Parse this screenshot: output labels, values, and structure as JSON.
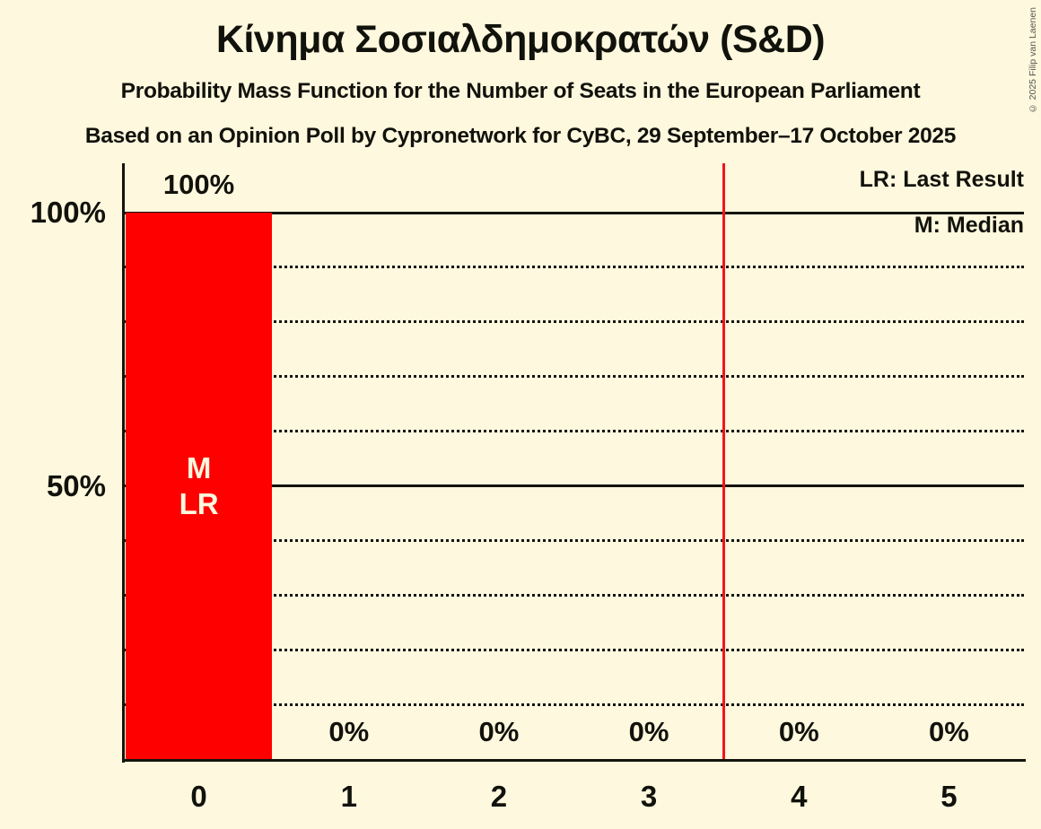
{
  "copyright": "© 2025 Filip van Laenen",
  "chart_data": {
    "type": "bar",
    "title": "Κίνημα Σοσιαλδημοκρατών (S&D)",
    "subtitle": "Probability Mass Function for the Number of Seats in the European Parliament",
    "note": "Based on an Opinion Poll by Cypronetwork for CyBC, 29 September–17 October 2025",
    "xlabel": "",
    "ylabel": "",
    "categories": [
      "0",
      "1",
      "2",
      "3",
      "4",
      "5"
    ],
    "values": [
      100,
      0,
      0,
      0,
      0,
      0
    ],
    "value_labels": [
      "100%",
      "0%",
      "0%",
      "0%",
      "0%",
      "0%"
    ],
    "bar_annotations": [
      [
        "M",
        "LR"
      ],
      [],
      [],
      [],
      [],
      []
    ],
    "y_axis": {
      "range": [
        0,
        100
      ],
      "ticks": [
        {
          "label": "100%",
          "value": 100
        },
        {
          "label": "50%",
          "value": 50
        }
      ]
    },
    "gridlines": {
      "dotted_percents": [
        10,
        20,
        30,
        40,
        60,
        70,
        80,
        90
      ],
      "solid_percents": [
        50,
        100
      ],
      "grid_on": true
    },
    "legend": {
      "lr": "LR: Last Result",
      "m": "M: Median",
      "position": "top-right"
    },
    "red_line_x": 3.5,
    "median_seats": 0,
    "last_result_seats": 0,
    "colors": {
      "background": "#fdf8de",
      "bar": "#ff0000",
      "bar_label": "#fdf8de",
      "red_line": "#f6121b",
      "text": "#12120c"
    }
  }
}
